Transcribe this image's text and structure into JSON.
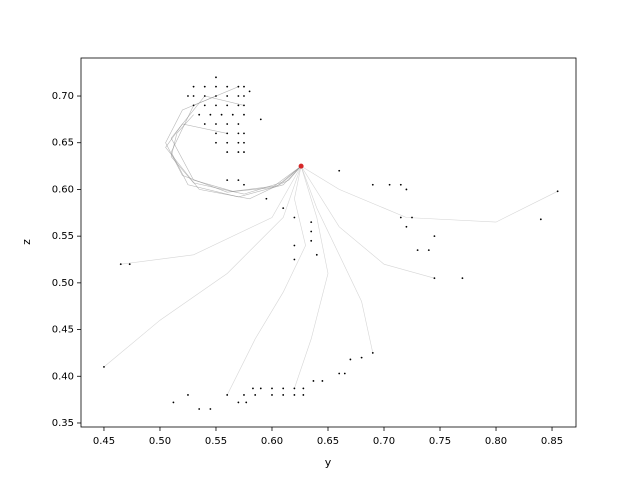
{
  "chart_data": {
    "type": "scatter",
    "xlabel": "y",
    "ylabel": "z",
    "xlim": [
      0.4295,
      0.8714
    ],
    "ylim": [
      0.3457,
      0.7407
    ],
    "xticks": [
      0.45,
      {
        "value": 0.5,
        "label": "0.50"
      },
      0.55,
      {
        "value": 0.6,
        "label": "0.60"
      },
      0.65,
      {
        "value": 0.7,
        "label": "0.70"
      },
      0.75,
      {
        "value": 0.8,
        "label": "0.80"
      },
      0.85
    ],
    "yticks": [
      0.35,
      {
        "value": 0.4,
        "label": "0.40"
      },
      0.45,
      {
        "value": 0.5,
        "label": "0.50"
      },
      0.55,
      {
        "value": 0.6,
        "label": "0.60"
      },
      0.65,
      {
        "value": 0.7,
        "label": "0.70"
      }
    ],
    "series": [
      {
        "type": "line",
        "color": "#888888",
        "x": [
          0.55,
          0.52,
          0.505,
          0.52,
          0.56,
          0.6,
          0.626
        ],
        "values": [
          0.7,
          0.685,
          0.65,
          0.615,
          0.597,
          0.602,
          0.625
        ]
      },
      {
        "type": "line",
        "color": "#888888",
        "x": [
          0.57,
          0.53,
          0.51,
          0.525,
          0.57,
          0.61,
          0.626
        ],
        "values": [
          0.71,
          0.69,
          0.64,
          0.605,
          0.592,
          0.605,
          0.625
        ]
      },
      {
        "type": "line",
        "color": "#888888",
        "x": [
          0.53,
          0.515,
          0.51,
          0.53,
          0.575,
          0.61,
          0.626
        ],
        "values": [
          0.68,
          0.66,
          0.635,
          0.607,
          0.595,
          0.608,
          0.625
        ]
      },
      {
        "type": "line",
        "color": "#888888",
        "x": [
          0.56,
          0.52,
          0.505,
          0.535,
          0.58,
          0.615,
          0.626
        ],
        "values": [
          0.66,
          0.67,
          0.645,
          0.6,
          0.59,
          0.61,
          0.625
        ]
      },
      {
        "type": "line",
        "color": "#888888",
        "x": [
          0.575,
          0.54,
          0.51,
          0.53,
          0.565,
          0.605,
          0.626
        ],
        "values": [
          0.69,
          0.7,
          0.655,
          0.61,
          0.598,
          0.604,
          0.625
        ]
      },
      {
        "type": "line",
        "color": "#bbbbbb",
        "x": [
          0.56,
          0.585,
          0.61,
          0.63,
          0.62,
          0.626
        ],
        "values": [
          0.38,
          0.44,
          0.49,
          0.54,
          0.59,
          0.625
        ]
      },
      {
        "type": "line",
        "color": "#bbbbbb",
        "x": [
          0.62,
          0.635,
          0.65,
          0.64,
          0.626
        ],
        "values": [
          0.387,
          0.44,
          0.51,
          0.57,
          0.625
        ]
      },
      {
        "type": "line",
        "color": "#bbbbbb",
        "x": [
          0.69,
          0.68,
          0.66,
          0.64,
          0.626
        ],
        "values": [
          0.425,
          0.48,
          0.53,
          0.58,
          0.625
        ]
      },
      {
        "type": "line",
        "color": "#bbbbbb",
        "x": [
          0.855,
          0.8,
          0.72,
          0.66,
          0.626
        ],
        "values": [
          0.598,
          0.565,
          0.57,
          0.6,
          0.625
        ]
      },
      {
        "type": "line",
        "color": "#bbbbbb",
        "x": [
          0.45,
          0.5,
          0.56,
          0.61,
          0.626
        ],
        "values": [
          0.41,
          0.46,
          0.51,
          0.57,
          0.625
        ]
      },
      {
        "type": "line",
        "color": "#bbbbbb",
        "x": [
          0.465,
          0.53,
          0.6,
          0.626
        ],
        "values": [
          0.52,
          0.53,
          0.57,
          0.625
        ]
      },
      {
        "type": "line",
        "color": "#bbbbbb",
        "x": [
          0.745,
          0.7,
          0.66,
          0.626
        ],
        "values": [
          0.505,
          0.52,
          0.56,
          0.625
        ]
      },
      {
        "type": "scatter",
        "color": "#000000",
        "x": [
          0.53,
          0.54,
          0.55,
          0.56,
          0.57,
          0.575,
          0.53,
          0.54,
          0.55,
          0.56,
          0.57,
          0.575,
          0.53,
          0.54,
          0.55,
          0.56,
          0.57,
          0.575,
          0.535,
          0.545,
          0.555,
          0.565,
          0.575,
          0.54,
          0.55,
          0.56,
          0.57,
          0.55,
          0.56,
          0.57,
          0.575,
          0.55,
          0.56,
          0.57,
          0.575,
          0.56,
          0.57,
          0.575,
          0.525,
          0.58,
          0.55,
          0.59,
          0.56,
          0.57,
          0.575,
          0.595,
          0.61,
          0.62,
          0.635,
          0.635,
          0.635,
          0.62,
          0.64,
          0.62,
          0.66,
          0.69,
          0.705,
          0.715,
          0.72,
          0.715,
          0.725,
          0.72,
          0.745,
          0.73,
          0.74,
          0.745,
          0.77,
          0.855,
          0.84,
          0.465,
          0.473,
          0.45,
          0.69,
          0.68,
          0.67,
          0.665,
          0.66,
          0.645,
          0.637,
          0.512,
          0.525,
          0.535,
          0.545,
          0.56,
          0.57,
          0.577,
          0.575,
          0.583,
          0.59,
          0.6,
          0.6,
          0.61,
          0.62,
          0.628,
          0.61,
          0.62,
          0.628,
          0.585
        ],
        "values": [
          0.71,
          0.71,
          0.71,
          0.71,
          0.71,
          0.71,
          0.7,
          0.7,
          0.7,
          0.7,
          0.7,
          0.7,
          0.69,
          0.69,
          0.69,
          0.69,
          0.69,
          0.69,
          0.68,
          0.68,
          0.68,
          0.68,
          0.68,
          0.67,
          0.67,
          0.67,
          0.67,
          0.66,
          0.66,
          0.66,
          0.66,
          0.65,
          0.65,
          0.65,
          0.65,
          0.64,
          0.64,
          0.64,
          0.7,
          0.705,
          0.72,
          0.675,
          0.61,
          0.61,
          0.605,
          0.59,
          0.58,
          0.57,
          0.565,
          0.555,
          0.545,
          0.54,
          0.53,
          0.525,
          0.62,
          0.605,
          0.605,
          0.605,
          0.6,
          0.57,
          0.57,
          0.56,
          0.55,
          0.535,
          0.535,
          0.505,
          0.505,
          0.598,
          0.568,
          0.52,
          0.52,
          0.41,
          0.425,
          0.42,
          0.418,
          0.403,
          0.403,
          0.395,
          0.395,
          0.372,
          0.38,
          0.365,
          0.365,
          0.38,
          0.372,
          0.372,
          0.38,
          0.387,
          0.387,
          0.387,
          0.38,
          0.387,
          0.387,
          0.387,
          0.38,
          0.38,
          0.38,
          0.38
        ]
      },
      {
        "type": "scatter",
        "color": "#d62728",
        "x": [
          0.626
        ],
        "values": [
          0.625
        ]
      }
    ]
  }
}
